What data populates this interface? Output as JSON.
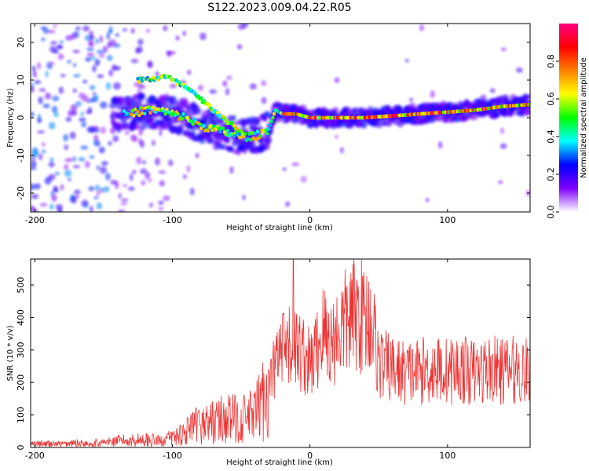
{
  "title": "S122.2023.009.04.22.R05",
  "chart_data": [
    {
      "type": "heatmap",
      "xlabel": "Height of straight line (km)",
      "ylabel": "Frequency (Hz)",
      "xlim": [
        -203,
        160
      ],
      "ylim": [
        -25,
        25
      ],
      "xticks": [
        -200,
        -100,
        0,
        100
      ],
      "yticks": [
        -20,
        -10,
        0,
        10,
        20
      ],
      "colorbar": {
        "label": "Normalized spectral amplitude",
        "range": [
          0.0,
          1.0
        ],
        "ticks": [
          0.0,
          0.2,
          0.4,
          0.6,
          0.8
        ],
        "colors": [
          "#ffffff",
          "#8000ff",
          "#0000ff",
          "#00ffff",
          "#00ff00",
          "#ffff00",
          "#ff8000",
          "#ff0000",
          "#ff0080"
        ]
      },
      "ridge": {
        "x": [
          -130,
          -120,
          -110,
          -100,
          -90,
          -80,
          -70,
          -60,
          -50,
          -40,
          -30,
          -25,
          -20,
          -10,
          0,
          20,
          40,
          60,
          80,
          100,
          120,
          140,
          160
        ],
        "y": [
          1,
          2,
          2,
          1,
          0,
          -2,
          -3,
          -4,
          -5,
          -5,
          -3,
          2,
          1,
          1,
          0,
          0,
          0,
          0.5,
          1,
          1.5,
          2,
          3,
          3.5
        ]
      },
      "upper_branch": {
        "x": [
          -125,
          -120,
          -105,
          -100,
          -90,
          -80,
          -70,
          -60,
          -50
        ],
        "y": [
          10,
          10,
          11,
          10,
          8,
          5,
          2,
          -1,
          -4
        ]
      }
    },
    {
      "type": "line",
      "xlabel": "Height of straight line (km)",
      "ylabel": "SNR (10 * v/v)",
      "xlim": [
        -203,
        160
      ],
      "ylim": [
        0,
        580
      ],
      "xticks": [
        -200,
        -100,
        0,
        100
      ],
      "yticks": [
        0,
        100,
        200,
        300,
        400,
        500
      ],
      "color": "#ee3333",
      "series": [
        {
          "x": [
            -203,
            -190,
            -180,
            -170,
            -160,
            -150,
            -140,
            -130,
            -120,
            -110,
            -100,
            -90,
            -80,
            -70,
            -60,
            -50,
            -40,
            -30,
            -25,
            -20,
            -15,
            -12,
            -10,
            -5,
            0,
            5,
            10,
            15,
            20,
            25,
            30,
            35,
            40,
            45,
            50,
            60,
            70,
            80,
            90,
            100,
            110,
            120,
            130,
            140,
            150,
            160
          ],
          "y": [
            10,
            12,
            10,
            14,
            12,
            15,
            20,
            22,
            25,
            20,
            30,
            50,
            70,
            80,
            90,
            85,
            100,
            180,
            260,
            290,
            300,
            320,
            300,
            290,
            250,
            300,
            360,
            320,
            350,
            380,
            400,
            410,
            400,
            390,
            260,
            240,
            230,
            235,
            240,
            235,
            240,
            230,
            240,
            235,
            240,
            230
          ]
        }
      ]
    }
  ]
}
